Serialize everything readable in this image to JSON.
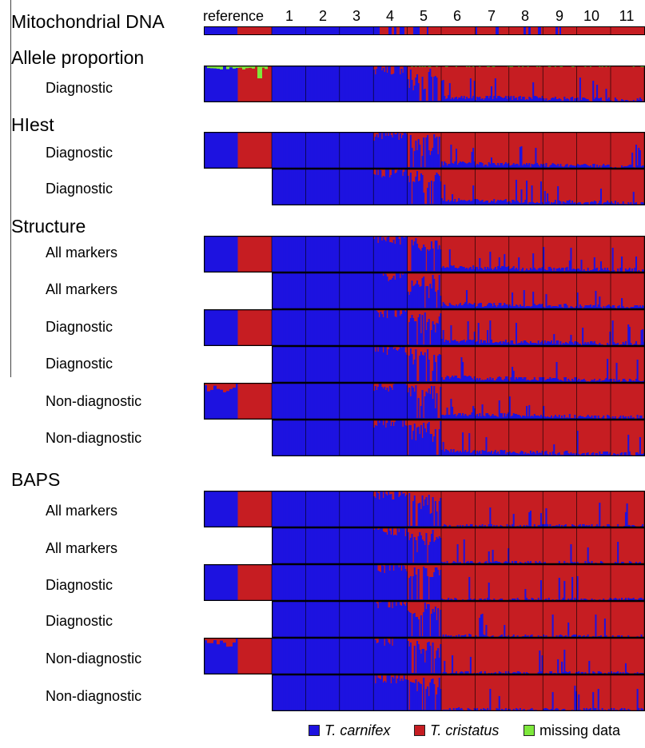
{
  "colors": {
    "blue": "#1d12e0",
    "red": "#c61d22",
    "green": "#7ee83c",
    "outline": "#000000"
  },
  "headers": {
    "mito": "Mitochondrial DNA",
    "reference": "reference",
    "columns": [
      "1",
      "2",
      "3",
      "4",
      "5",
      "6",
      "7",
      "8",
      "9",
      "10",
      "11"
    ]
  },
  "sections": {
    "allele": "Allele proportion",
    "hiest": "HIest",
    "structure": "Structure",
    "baps": "BAPS"
  },
  "rows": [
    {
      "label": "Diagnostic",
      "has_reference": true,
      "kind": "allele"
    },
    {
      "label": "Diagnostic",
      "has_reference": true,
      "kind": "hiest"
    },
    {
      "label": "Diagnostic",
      "has_reference": false,
      "kind": "hiest"
    },
    {
      "label": "All markers",
      "has_reference": true,
      "kind": "structure"
    },
    {
      "label": "All markers",
      "has_reference": false,
      "kind": "structure"
    },
    {
      "label": "Diagnostic",
      "has_reference": true,
      "kind": "structure"
    },
    {
      "label": "Diagnostic",
      "has_reference": false,
      "kind": "structure"
    },
    {
      "label": "Non-diagnostic",
      "has_reference": true,
      "kind": "nondiag"
    },
    {
      "label": "Non-diagnostic",
      "has_reference": false,
      "kind": "nondiag"
    },
    {
      "label": "All markers",
      "has_reference": true,
      "kind": "baps"
    },
    {
      "label": "All markers",
      "has_reference": false,
      "kind": "baps"
    },
    {
      "label": "Diagnostic",
      "has_reference": true,
      "kind": "baps"
    },
    {
      "label": "Diagnostic",
      "has_reference": false,
      "kind": "baps"
    },
    {
      "label": "Non-diagnostic",
      "has_reference": true,
      "kind": "bapsnd"
    },
    {
      "label": "Non-diagnostic",
      "has_reference": false,
      "kind": "bapsnd"
    }
  ],
  "legend": [
    {
      "label": "T. carnifex",
      "color": "#1d12e0",
      "italic": true
    },
    {
      "label": "T. cristatus",
      "color": "#c61d22",
      "italic": true
    },
    {
      "label": "missing data",
      "color": "#7ee83c",
      "italic": false
    }
  ]
}
